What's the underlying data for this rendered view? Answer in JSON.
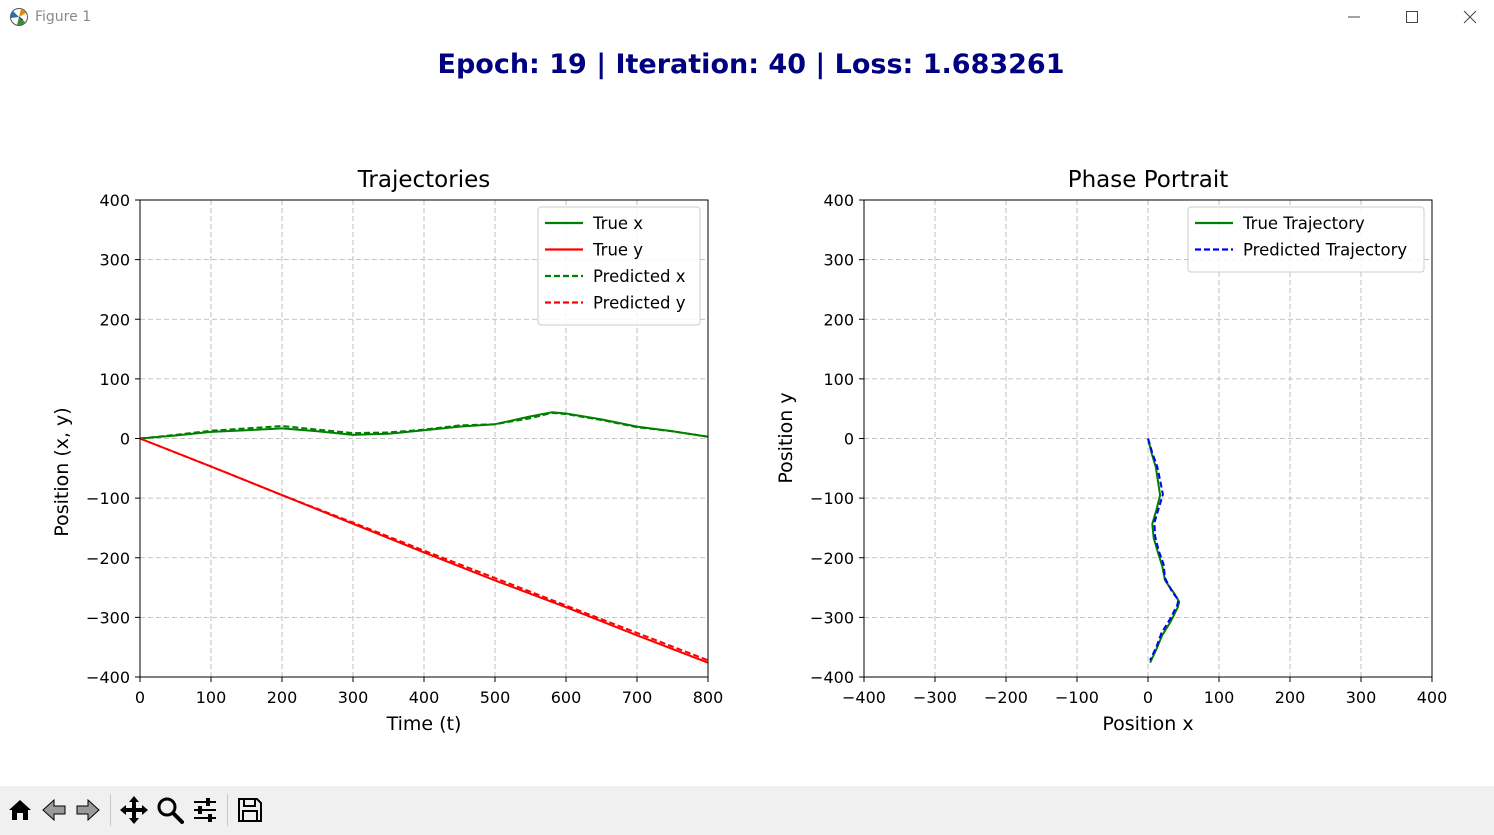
{
  "window": {
    "title": "Figure 1",
    "icons": {
      "app": "matplotlib-icon",
      "minimize": "minimize-icon",
      "maximize": "maximize-icon",
      "close": "close-icon"
    }
  },
  "figure": {
    "suptitle": "Epoch: 19 | Iteration: 40 | Loss: 1.683261",
    "suptitle_color": "#000080"
  },
  "toolbar": {
    "items": [
      "home-icon",
      "back-icon",
      "forward-icon",
      "pan-icon",
      "zoom-icon",
      "configure-subplots-icon",
      "save-icon"
    ]
  },
  "chart_data": [
    {
      "type": "line",
      "title": "Trajectories",
      "xlabel": "Time (t)",
      "ylabel": "Position (x, y)",
      "xlim": [
        0,
        800
      ],
      "ylim": [
        -400,
        400
      ],
      "xticks": [
        0,
        100,
        200,
        300,
        400,
        500,
        600,
        700,
        800
      ],
      "yticks": [
        -400,
        -300,
        -200,
        -100,
        0,
        100,
        200,
        300,
        400
      ],
      "grid": true,
      "legend": "top-right",
      "series": [
        {
          "name": "True x",
          "color": "#008000",
          "style": "solid",
          "x": [
            0,
            50,
            100,
            150,
            200,
            250,
            300,
            350,
            400,
            450,
            500,
            550,
            580,
            600,
            650,
            700,
            750,
            800
          ],
          "y": [
            0,
            5,
            11,
            14,
            17,
            12,
            6,
            8,
            14,
            20,
            24,
            37,
            44,
            42,
            32,
            20,
            12,
            3
          ]
        },
        {
          "name": "True y",
          "color": "#ff0000",
          "style": "solid",
          "x": [
            0,
            100,
            200,
            300,
            400,
            500,
            600,
            700,
            800
          ],
          "y": [
            0,
            -47,
            -95,
            -143,
            -191,
            -238,
            -283,
            -330,
            -376
          ]
        },
        {
          "name": "Predicted x",
          "color": "#008000",
          "style": "dashed",
          "x": [
            0,
            50,
            100,
            150,
            200,
            250,
            300,
            350,
            400,
            450,
            500,
            550,
            580,
            600,
            650,
            700,
            750,
            800
          ],
          "y": [
            0,
            6,
            13,
            17,
            21,
            15,
            9,
            10,
            15,
            22,
            24,
            34,
            43,
            41,
            31,
            19,
            12,
            3
          ]
        },
        {
          "name": "Predicted y",
          "color": "#ff0000",
          "style": "dashed",
          "x": [
            0,
            100,
            200,
            300,
            400,
            500,
            600,
            700,
            800
          ],
          "y": [
            0,
            -47,
            -95,
            -141,
            -188,
            -234,
            -280,
            -326,
            -372
          ]
        }
      ]
    },
    {
      "type": "line",
      "title": "Phase Portrait",
      "xlabel": "Position x",
      "ylabel": "Position y",
      "xlim": [
        -400,
        400
      ],
      "ylim": [
        -400,
        400
      ],
      "xticks": [
        -400,
        -300,
        -200,
        -100,
        0,
        100,
        200,
        300,
        400
      ],
      "yticks": [
        -400,
        -300,
        -200,
        -100,
        0,
        100,
        200,
        300,
        400
      ],
      "grid": true,
      "legend": "top-right",
      "series": [
        {
          "name": "True Trajectory",
          "color": "#008000",
          "style": "solid",
          "x": [
            0,
            5,
            11,
            14,
            17,
            12,
            6,
            8,
            14,
            20,
            24,
            37,
            44,
            42,
            32,
            20,
            12,
            3
          ],
          "y": [
            0,
            -24,
            -48,
            -71,
            -95,
            -119,
            -143,
            -167,
            -191,
            -214,
            -238,
            -260,
            -274,
            -283,
            -307,
            -330,
            -353,
            -376
          ]
        },
        {
          "name": "Predicted Trajectory",
          "color": "#0000ff",
          "style": "dashed",
          "x": [
            0,
            6,
            13,
            17,
            21,
            15,
            9,
            10,
            15,
            22,
            24,
            34,
            43,
            41,
            31,
            19,
            12,
            3
          ],
          "y": [
            0,
            -24,
            -47,
            -70,
            -94,
            -117,
            -141,
            -164,
            -188,
            -211,
            -234,
            -257,
            -271,
            -280,
            -303,
            -326,
            -349,
            -372
          ]
        }
      ]
    }
  ]
}
